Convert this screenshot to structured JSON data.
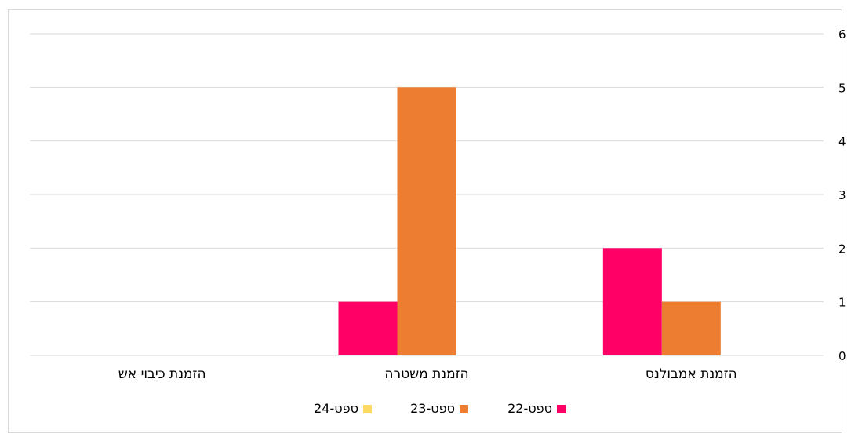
{
  "chart_data": {
    "type": "bar",
    "direction": "rtl",
    "y_axis_side": "right",
    "categories": [
      "הזמנת אמבולנס",
      "הזמנת משטרה",
      "הזמנת כיבוי אש"
    ],
    "series": [
      {
        "name": "ספט-22",
        "color": "#ff0066",
        "values": [
          2,
          1,
          0
        ]
      },
      {
        "name": "ספט-23",
        "color": "#ed7d31",
        "values": [
          1,
          5,
          0
        ]
      },
      {
        "name": "ספט-24",
        "color": "#ffd966",
        "values": [
          0,
          0,
          0
        ]
      }
    ],
    "ylim": [
      0,
      6
    ],
    "yticks": [
      0,
      1,
      2,
      3,
      4,
      5,
      6
    ],
    "grid": true,
    "legend": "bottom",
    "title": "",
    "xlabel": "",
    "ylabel": ""
  }
}
